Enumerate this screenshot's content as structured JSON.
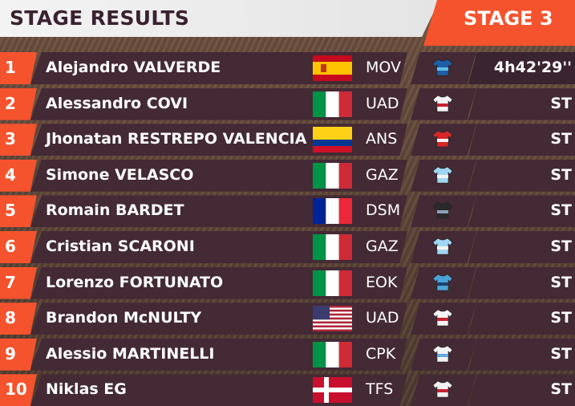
{
  "header": {
    "title": "STAGE RESULTS",
    "stage": "STAGE 3"
  },
  "colors": {
    "accent": "#f4532d",
    "row_bg": "#432a35",
    "header_bg": "#f0f0f0"
  },
  "rows": [
    {
      "pos": "1",
      "name": "Alejandro VALVERDE",
      "flag": "spain",
      "team": "MOV",
      "jersey": "blue-jersey-icon",
      "time": "4h42'29''"
    },
    {
      "pos": "2",
      "name": "Alessandro COVI",
      "flag": "italy",
      "team": "UAD",
      "jersey": "white-red-jersey-icon",
      "time": "ST"
    },
    {
      "pos": "3",
      "name": "Jhonatan RESTREPO VALENCIA",
      "flag": "colombia",
      "team": "ANS",
      "jersey": "red-white-jersey-icon",
      "time": "ST"
    },
    {
      "pos": "4",
      "name": "Simone VELASCO",
      "flag": "italy",
      "team": "GAZ",
      "jersey": "sky-blue-jersey-icon",
      "time": "ST"
    },
    {
      "pos": "5",
      "name": "Romain BARDET",
      "flag": "france",
      "team": "DSM",
      "jersey": "black-jersey-icon",
      "time": "ST"
    },
    {
      "pos": "6",
      "name": "Cristian SCARONI",
      "flag": "italy",
      "team": "GAZ",
      "jersey": "sky-blue-jersey-icon",
      "time": "ST"
    },
    {
      "pos": "7",
      "name": "Lorenzo FORTUNATO",
      "flag": "italy",
      "team": "EOK",
      "jersey": "light-blue-jersey-icon",
      "time": "ST"
    },
    {
      "pos": "8",
      "name": "Brandon McNULTY",
      "flag": "usa",
      "team": "UAD",
      "jersey": "white-red-jersey-icon",
      "time": "ST"
    },
    {
      "pos": "9",
      "name": "Alessio MARTINELLI",
      "flag": "italy",
      "team": "CPK",
      "jersey": "white-blue-jersey-icon",
      "time": "ST"
    },
    {
      "pos": "10",
      "name": "Niklas EG",
      "flag": "denmark",
      "team": "TFS",
      "jersey": "white-red-jersey-icon",
      "time": "ST"
    }
  ]
}
